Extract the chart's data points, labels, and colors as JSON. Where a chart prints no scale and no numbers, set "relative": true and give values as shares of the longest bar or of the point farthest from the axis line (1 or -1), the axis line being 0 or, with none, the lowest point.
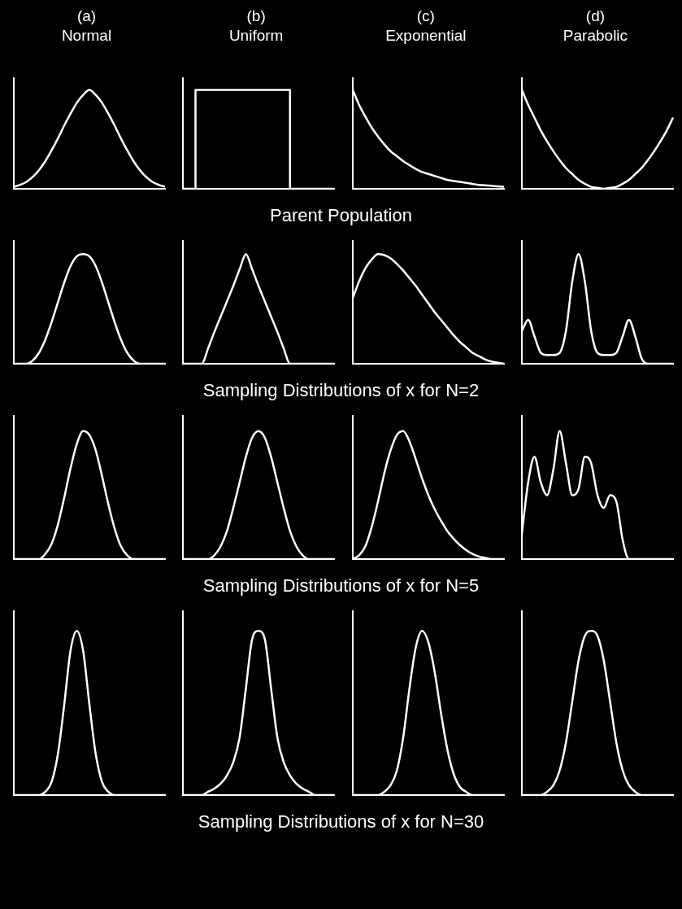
{
  "chart_data": [
    {
      "type": "line",
      "title": "(a)",
      "subtitle": "Normal",
      "relative": true,
      "color": "#ffffff",
      "annotations": [
        "Parent Population"
      ],
      "categories": [
        null,
        null,
        null,
        null,
        null,
        null,
        null,
        null,
        null,
        null,
        null,
        null,
        null,
        null,
        null,
        null,
        null,
        null,
        null,
        null,
        null,
        null,
        null,
        null,
        null
      ],
      "values": [
        0.02,
        0.04,
        0.07,
        0.12,
        0.19,
        0.28,
        0.39,
        0.51,
        0.64,
        0.76,
        0.87,
        0.95,
        1,
        0.95,
        0.87,
        0.76,
        0.64,
        0.51,
        0.39,
        0.28,
        0.19,
        0.12,
        0.07,
        0.04,
        0.02
      ]
    },
    {
      "type": "step",
      "title": "(b)",
      "subtitle": "Uniform",
      "relative": true,
      "color": "#ffffff",
      "categories": [
        null,
        null,
        null,
        null,
        null,
        null,
        null,
        null,
        null,
        null,
        null,
        null,
        null,
        null,
        null,
        null,
        null,
        null,
        null,
        null,
        null,
        null,
        null,
        null,
        null
      ],
      "values": [
        0,
        0,
        0,
        1,
        1,
        1,
        1,
        1,
        1,
        1,
        1,
        1,
        1,
        1,
        1,
        1,
        1,
        1,
        0,
        0,
        0,
        0,
        0,
        0,
        0
      ]
    },
    {
      "type": "line",
      "title": "(c)",
      "subtitle": "Exponential",
      "relative": true,
      "color": "#ffffff",
      "categories": [
        null,
        null,
        null,
        null,
        null,
        null,
        null,
        null,
        null,
        null,
        null,
        null,
        null,
        null,
        null,
        null,
        null,
        null,
        null,
        null,
        null,
        null,
        null,
        null,
        null
      ],
      "values": [
        1,
        0.85,
        0.73,
        0.62,
        0.53,
        0.45,
        0.38,
        0.33,
        0.28,
        0.24,
        0.2,
        0.17,
        0.15,
        0.13,
        0.11,
        0.09,
        0.08,
        0.07,
        0.06,
        0.05,
        0.04,
        0.035,
        0.03,
        0.025,
        0.02
      ]
    },
    {
      "type": "line",
      "title": "(d)",
      "subtitle": "Parabolic",
      "relative": true,
      "color": "#ffffff",
      "categories": [
        null,
        null,
        null,
        null,
        null,
        null,
        null,
        null,
        null,
        null,
        null,
        null,
        null,
        null,
        null,
        null,
        null,
        null,
        null,
        null,
        null,
        null,
        null,
        null,
        null
      ],
      "values": [
        1,
        0.85,
        0.72,
        0.59,
        0.48,
        0.38,
        0.29,
        0.21,
        0.15,
        0.09,
        0.05,
        0.02,
        0.01,
        0,
        0.01,
        0.02,
        0.05,
        0.09,
        0.15,
        0.21,
        0.29,
        0.38,
        0.48,
        0.59,
        0.72
      ]
    },
    {
      "type": "line",
      "relative": true,
      "color": "#ffffff",
      "annotations": [
        "Sampling Distributions of x for N=2"
      ],
      "categories": [
        null,
        null,
        null,
        null,
        null,
        null,
        null,
        null,
        null,
        null,
        null,
        null,
        null,
        null,
        null,
        null,
        null,
        null,
        null,
        null,
        null,
        null,
        null,
        null,
        null
      ],
      "values": [
        0,
        0,
        0,
        0.03,
        0.1,
        0.22,
        0.38,
        0.56,
        0.74,
        0.89,
        0.98,
        1,
        0.98,
        0.89,
        0.74,
        0.56,
        0.38,
        0.22,
        0.1,
        0.03,
        0,
        0,
        0,
        0,
        0
      ]
    },
    {
      "type": "line",
      "relative": true,
      "color": "#ffffff",
      "categories": [
        null,
        null,
        null,
        null,
        null,
        null,
        null,
        null,
        null,
        null,
        null,
        null,
        null,
        null,
        null,
        null,
        null,
        null,
        null,
        null,
        null,
        null,
        null,
        null,
        null
      ],
      "values": [
        0,
        0,
        0,
        0,
        0.14,
        0.29,
        0.43,
        0.57,
        0.71,
        0.86,
        1,
        0.86,
        0.71,
        0.57,
        0.43,
        0.29,
        0.14,
        0,
        0,
        0,
        0,
        0,
        0,
        0,
        0
      ]
    },
    {
      "type": "line",
      "relative": true,
      "color": "#ffffff",
      "categories": [
        null,
        null,
        null,
        null,
        null,
        null,
        null,
        null,
        null,
        null,
        null,
        null,
        null,
        null,
        null,
        null,
        null,
        null,
        null,
        null,
        null,
        null,
        null,
        null,
        null
      ],
      "values": [
        0.6,
        0.75,
        0.87,
        0.95,
        1,
        0.99,
        0.96,
        0.91,
        0.85,
        0.78,
        0.71,
        0.63,
        0.55,
        0.47,
        0.4,
        0.33,
        0.26,
        0.2,
        0.15,
        0.1,
        0.07,
        0.04,
        0.02,
        0.01,
        0
      ]
    },
    {
      "type": "line",
      "relative": true,
      "color": "#ffffff",
      "categories": [
        null,
        null,
        null,
        null,
        null,
        null,
        null,
        null,
        null,
        null,
        null,
        null,
        null,
        null,
        null,
        null,
        null,
        null,
        null,
        null,
        null,
        null,
        null,
        null,
        null
      ],
      "values": [
        0.3,
        0.4,
        0.25,
        0.1,
        0.08,
        0.08,
        0.1,
        0.3,
        0.75,
        1,
        0.75,
        0.3,
        0.1,
        0.08,
        0.08,
        0.1,
        0.25,
        0.4,
        0.25,
        0.05,
        0,
        0,
        0,
        0,
        0
      ]
    },
    {
      "type": "line",
      "relative": true,
      "color": "#ffffff",
      "annotations": [
        "Sampling Distributions of x for N=5"
      ],
      "categories": [
        null,
        null,
        null,
        null,
        null,
        null,
        null,
        null,
        null,
        null,
        null,
        null,
        null,
        null,
        null,
        null,
        null,
        null,
        null,
        null,
        null,
        null,
        null,
        null,
        null
      ],
      "values": [
        0,
        0,
        0,
        0,
        0,
        0.04,
        0.12,
        0.27,
        0.48,
        0.71,
        0.9,
        1,
        0.97,
        0.85,
        0.65,
        0.43,
        0.24,
        0.1,
        0.03,
        0,
        0,
        0,
        0,
        0,
        0
      ]
    },
    {
      "type": "line",
      "relative": true,
      "color": "#ffffff",
      "categories": [
        null,
        null,
        null,
        null,
        null,
        null,
        null,
        null,
        null,
        null,
        null,
        null,
        null,
        null,
        null,
        null,
        null,
        null,
        null,
        null,
        null,
        null,
        null,
        null,
        null
      ],
      "values": [
        0,
        0,
        0,
        0,
        0,
        0.03,
        0.1,
        0.22,
        0.4,
        0.6,
        0.8,
        0.95,
        1,
        0.95,
        0.8,
        0.6,
        0.4,
        0.22,
        0.1,
        0.03,
        0,
        0,
        0,
        0,
        0
      ]
    },
    {
      "type": "line",
      "relative": true,
      "color": "#ffffff",
      "categories": [
        null,
        null,
        null,
        null,
        null,
        null,
        null,
        null,
        null,
        null,
        null,
        null,
        null,
        null,
        null,
        null,
        null,
        null,
        null,
        null,
        null,
        null,
        null,
        null,
        null
      ],
      "values": [
        0,
        0.03,
        0.1,
        0.25,
        0.45,
        0.67,
        0.85,
        0.97,
        1,
        0.92,
        0.78,
        0.63,
        0.5,
        0.39,
        0.3,
        0.22,
        0.16,
        0.11,
        0.07,
        0.04,
        0.02,
        0.01,
        0,
        0,
        0
      ]
    },
    {
      "type": "line",
      "relative": true,
      "color": "#ffffff",
      "categories": [
        null,
        null,
        null,
        null,
        null,
        null,
        null,
        null,
        null,
        null,
        null,
        null,
        null,
        null,
        null,
        null,
        null,
        null,
        null,
        null,
        null,
        null,
        null,
        null,
        null
      ],
      "values": [
        0.2,
        0.6,
        0.8,
        0.6,
        0.5,
        0.7,
        1,
        0.75,
        0.5,
        0.55,
        0.8,
        0.75,
        0.5,
        0.4,
        0.5,
        0.45,
        0.15,
        0,
        0,
        0,
        0,
        0,
        0,
        0,
        0
      ]
    },
    {
      "type": "line",
      "relative": true,
      "color": "#ffffff",
      "annotations": [
        "Sampling Distributions of x for N=30"
      ],
      "categories": [
        null,
        null,
        null,
        null,
        null,
        null,
        null,
        null,
        null,
        null,
        null,
        null,
        null,
        null,
        null,
        null,
        null,
        null,
        null,
        null,
        null,
        null,
        null,
        null,
        null
      ],
      "values": [
        0,
        0,
        0,
        0,
        0,
        0.02,
        0.08,
        0.25,
        0.55,
        0.88,
        1,
        0.88,
        0.55,
        0.25,
        0.08,
        0.02,
        0,
        0,
        0,
        0,
        0,
        0,
        0,
        0,
        0
      ]
    },
    {
      "type": "line",
      "relative": true,
      "color": "#ffffff",
      "categories": [
        null,
        null,
        null,
        null,
        null,
        null,
        null,
        null,
        null,
        null,
        null,
        null,
        null,
        null,
        null,
        null,
        null,
        null,
        null,
        null,
        null,
        null,
        null,
        null,
        null
      ],
      "values": [
        0,
        0,
        0,
        0,
        0.02,
        0.04,
        0.07,
        0.12,
        0.2,
        0.35,
        0.65,
        0.95,
        1,
        0.95,
        0.65,
        0.35,
        0.2,
        0.12,
        0.07,
        0.04,
        0.02,
        0,
        0,
        0,
        0
      ]
    },
    {
      "type": "line",
      "relative": true,
      "color": "#ffffff",
      "categories": [
        null,
        null,
        null,
        null,
        null,
        null,
        null,
        null,
        null,
        null,
        null,
        null,
        null,
        null,
        null,
        null,
        null,
        null,
        null,
        null,
        null,
        null,
        null,
        null,
        null
      ],
      "values": [
        0,
        0,
        0,
        0,
        0,
        0.02,
        0.06,
        0.15,
        0.35,
        0.65,
        0.9,
        1,
        0.93,
        0.75,
        0.5,
        0.28,
        0.13,
        0.05,
        0.02,
        0,
        0,
        0,
        0,
        0,
        0
      ]
    },
    {
      "type": "line",
      "relative": true,
      "color": "#ffffff",
      "categories": [
        null,
        null,
        null,
        null,
        null,
        null,
        null,
        null,
        null,
        null,
        null,
        null,
        null,
        null,
        null,
        null,
        null,
        null,
        null,
        null,
        null,
        null,
        null,
        null,
        null
      ],
      "values": [
        0,
        0,
        0,
        0,
        0.02,
        0.06,
        0.15,
        0.32,
        0.57,
        0.82,
        0.97,
        1,
        0.97,
        0.82,
        0.57,
        0.32,
        0.15,
        0.06,
        0.02,
        0,
        0,
        0,
        0,
        0,
        0
      ]
    }
  ]
}
